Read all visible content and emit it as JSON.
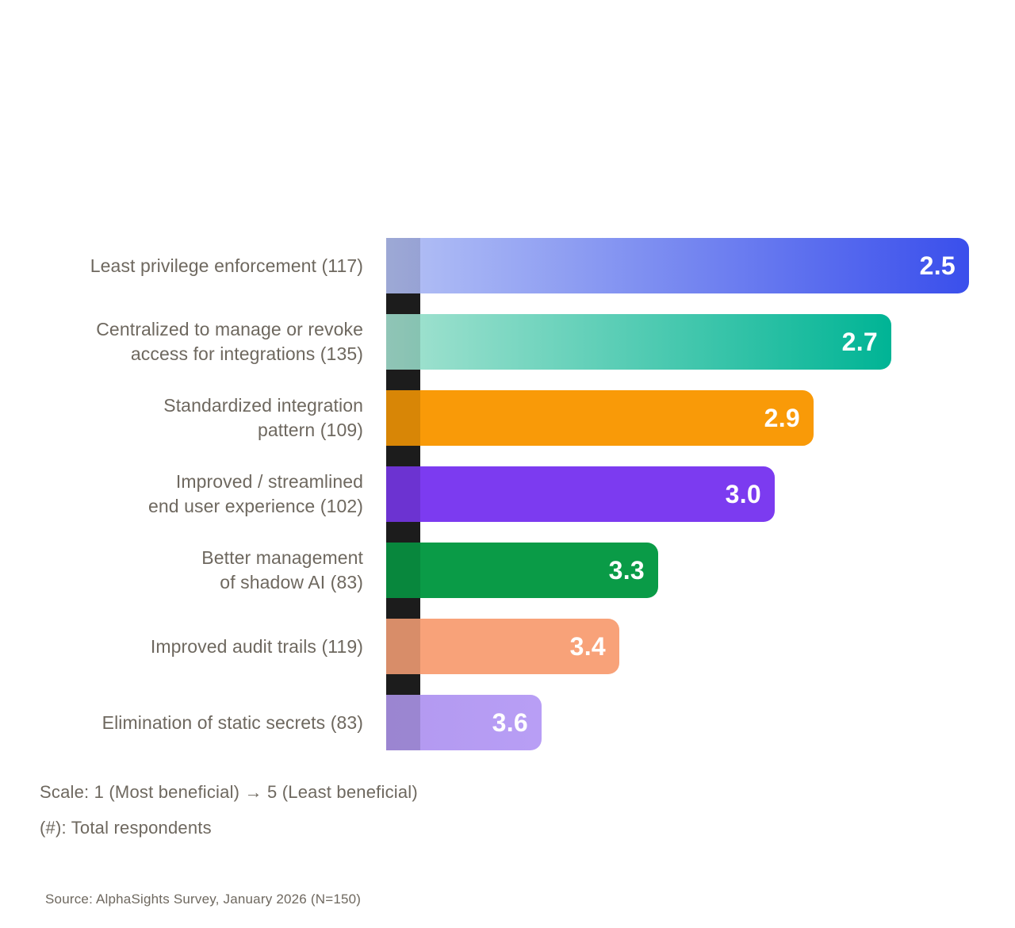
{
  "chart_data": {
    "type": "bar",
    "orientation": "horizontal",
    "title": "",
    "categories": [
      "Least privilege enforcement (117)",
      "Centralized to manage or revoke access for integrations (135)",
      "Standardized integration pattern (109)",
      "Improved / streamlined end user experience (102)",
      "Better management of shadow AI (83)",
      "Improved audit trails (119)",
      "Elimination of static secrets (83)"
    ],
    "values": [
      2.5,
      2.7,
      2.9,
      3.0,
      3.3,
      3.4,
      3.6
    ],
    "respondents": [
      117,
      135,
      109,
      102,
      83,
      119,
      83
    ],
    "value_scale": {
      "min": 1,
      "max": 5,
      "meaning": "1 = Most beneficial, 5 = Least beneficial",
      "bar_length_zero_at": 4.0
    },
    "legend_position": "none",
    "grid": false,
    "bars": [
      {
        "label": "Least privilege enforcement (117)",
        "value": 2.5,
        "color_start": "#B5C2F5",
        "color_end": "#3A4FEC"
      },
      {
        "label": "Centralized to manage or revoke\naccess for integrations (135)",
        "value": 2.7,
        "color_start": "#A6E3D1",
        "color_end": "#00B495"
      },
      {
        "label": "Standardized integration\npattern (109)",
        "value": 2.9,
        "color_start": "#F99A08",
        "color_end": "#F99A08"
      },
      {
        "label": "Improved / streamlined\nend user experience (102)",
        "value": 3.0,
        "color_start": "#7C3BF0",
        "color_end": "#7C3BF0"
      },
      {
        "label": "Better management\nof shadow AI (83)",
        "value": 3.3,
        "color_start": "#0A9B47",
        "color_end": "#0A9B47"
      },
      {
        "label": "Improved audit trails (119)",
        "value": 3.4,
        "color_start": "#F8A279",
        "color_end": "#F8A279"
      },
      {
        "label": "Elimination of static secrets (83)",
        "value": 3.6,
        "color_start": "#B299F0",
        "color_end": "#B89EF5"
      }
    ],
    "axis_strip_color": "#1C1C1C",
    "label_color": "#6E685F",
    "value_label_color": "#FFFFFF"
  },
  "footnotes": {
    "scale": "Scale: 1 (Most beneficial) → 5 (Least beneficial)",
    "respondents": "(#): Total respondents"
  },
  "source": "Source: AlphaSights Survey, January 2026 (N=150)"
}
